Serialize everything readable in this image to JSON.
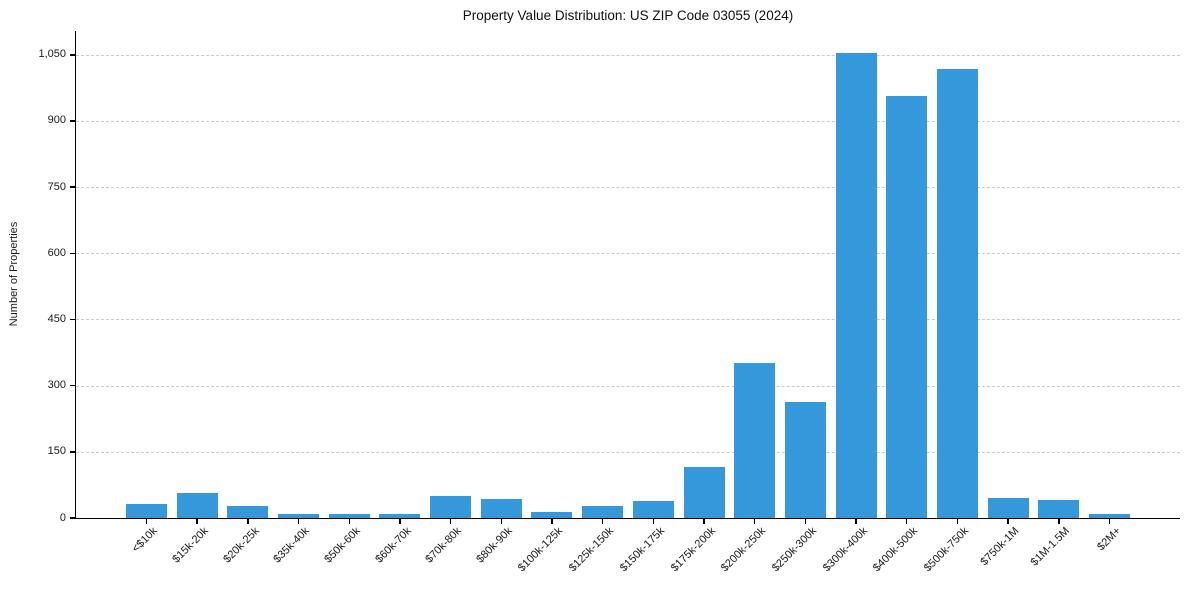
{
  "chart_data": {
    "type": "bar",
    "title": "Property Value Distribution: US ZIP Code 03055 (2024)",
    "xlabel": "",
    "ylabel": "Number of Properties",
    "categories": [
      "<$10k",
      "$15k-20k",
      "$20k-25k",
      "$35k-40k",
      "$50k-60k",
      "$60k-70k",
      "$70k-80k",
      "$80k-90k",
      "$100k-125k",
      "$125k-150k",
      "$150k-175k",
      "$175k-200k",
      "$200k-250k",
      "$250k-300k",
      "$300k-400k",
      "$400k-500k",
      "$500k-750k",
      "$750k-1M",
      "$1M-1.5M",
      "$2M+"
    ],
    "values": [
      32,
      57,
      28,
      10,
      8,
      8,
      50,
      43,
      13,
      28,
      38,
      116,
      351,
      263,
      1053,
      957,
      1018,
      45,
      40,
      9
    ],
    "y_ticks": [
      0,
      150,
      300,
      450,
      600,
      750,
      900,
      1050
    ],
    "y_tick_labels": [
      "0",
      "150",
      "300",
      "450",
      "600",
      "750",
      "900",
      "1,050"
    ],
    "ylim": [
      0,
      1104
    ],
    "bar_color": "#3498db",
    "grid": "horizontal dashed gridlines at each y tick",
    "legend": "none",
    "x_tick_label_rotation_deg": 45
  }
}
